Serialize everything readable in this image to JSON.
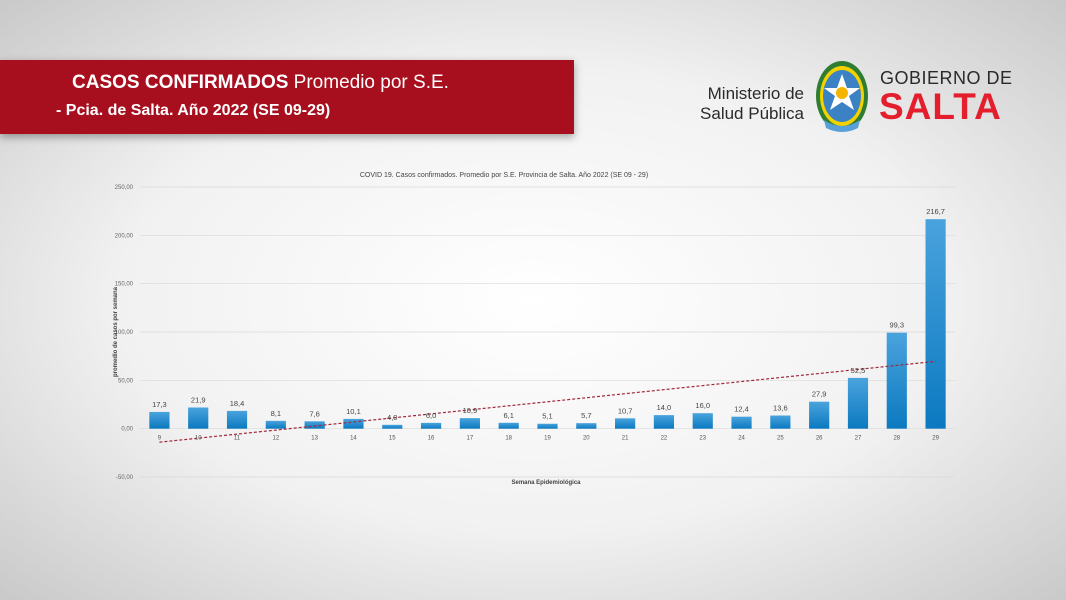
{
  "header": {
    "title_bold": "CASOS CONFIRMADOS",
    "title_rest": " Promedio por S.E.",
    "subtitle": "- Pcia. de Salta. Año 2022 (SE 09-29)",
    "banner_color": "#a80f1e"
  },
  "logo": {
    "ministry_line1": "Ministerio de",
    "ministry_line2": "Salud Pública",
    "gov_line": "GOBIERNO DE",
    "gov_name": "SALTA",
    "brand_color": "#e41e2d",
    "emblem_icon": "salta-province-emblem"
  },
  "chart_data": {
    "type": "bar",
    "title": "COVID 19. Casos confirmados. Promedio por S.E. Provincia de Salta. Año 2022 (SE 09 - 29)",
    "xlabel": "Semana Epidemiológica",
    "ylabel": "promedio de casos por semana",
    "categories": [
      "9",
      "10",
      "11",
      "12",
      "13",
      "14",
      "15",
      "16",
      "17",
      "18",
      "19",
      "20",
      "21",
      "22",
      "23",
      "24",
      "25",
      "26",
      "27",
      "28",
      "29"
    ],
    "values": [
      17.3,
      21.9,
      18.4,
      8.1,
      7.6,
      10.1,
      4.0,
      6.0,
      10.9,
      6.1,
      5.1,
      5.7,
      10.7,
      14.0,
      16.0,
      12.4,
      13.6,
      27.9,
      52.5,
      99.3,
      216.7
    ],
    "data_labels": [
      "17,3",
      "21,9",
      "18,4",
      "8,1",
      "7,6",
      "10,1",
      "4,0",
      "6,0",
      "10,9",
      "6,1",
      "5,1",
      "5,7",
      "10,7",
      "14,0",
      "16,0",
      "12,4",
      "13,6",
      "27,9",
      "52,5",
      "99,3",
      "216,7"
    ],
    "y_ticks": [
      250,
      200,
      150,
      100,
      50,
      0,
      -50
    ],
    "y_tick_labels": [
      "250,00",
      "200,00",
      "150,00",
      "100,00",
      "50,00",
      "0,00",
      "-50,00"
    ],
    "ylim": [
      -50,
      250
    ],
    "grid": true,
    "legend": "none",
    "trendline": {
      "type": "linear",
      "style": "dashed",
      "color": "#a0283c"
    },
    "bar_color_top": "#4aa3dd",
    "bar_color_bottom": "#0b79c0"
  }
}
